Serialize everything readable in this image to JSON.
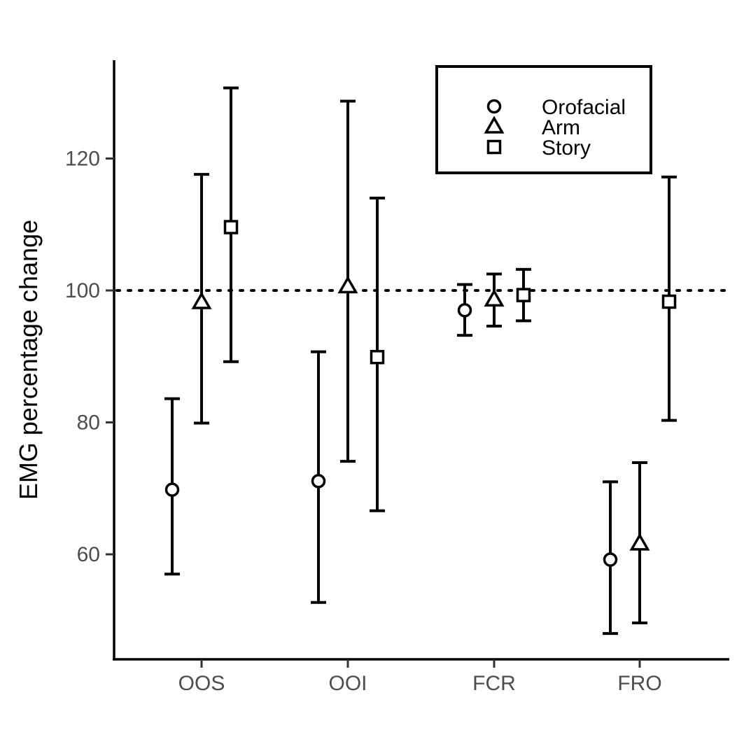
{
  "chart_data": {
    "type": "scatter",
    "title": "",
    "xlabel": "",
    "ylabel": "EMG percentage change",
    "categories": [
      "OOS",
      "OOI",
      "FCR",
      "FRO"
    ],
    "ylim": [
      44,
      135
    ],
    "yticks": [
      60,
      80,
      100,
      120
    ],
    "reference_line": 100,
    "grid": false,
    "legend": "top-right",
    "series": [
      {
        "name": "Orofacial",
        "shape": "circle",
        "values": [
          69.8,
          71.1,
          97.0,
          59.2
        ],
        "lower": [
          57.0,
          52.7,
          93.2,
          48.0
        ],
        "upper": [
          83.6,
          90.7,
          100.9,
          71.0
        ]
      },
      {
        "name": "Arm",
        "shape": "triangle",
        "values": [
          98.2,
          100.6,
          98.6,
          61.6
        ],
        "lower": [
          79.9,
          74.1,
          94.6,
          49.6
        ],
        "upper": [
          117.6,
          128.7,
          102.5,
          73.9
        ]
      },
      {
        "name": "Story",
        "shape": "square",
        "values": [
          109.6,
          89.9,
          99.3,
          98.3
        ],
        "lower": [
          89.2,
          66.6,
          95.4,
          80.3
        ],
        "upper": [
          130.7,
          114.0,
          103.2,
          117.2
        ]
      }
    ]
  },
  "colors": {
    "ink": "#000000",
    "tick_text": "#4d4d4d",
    "background": "#ffffff"
  }
}
